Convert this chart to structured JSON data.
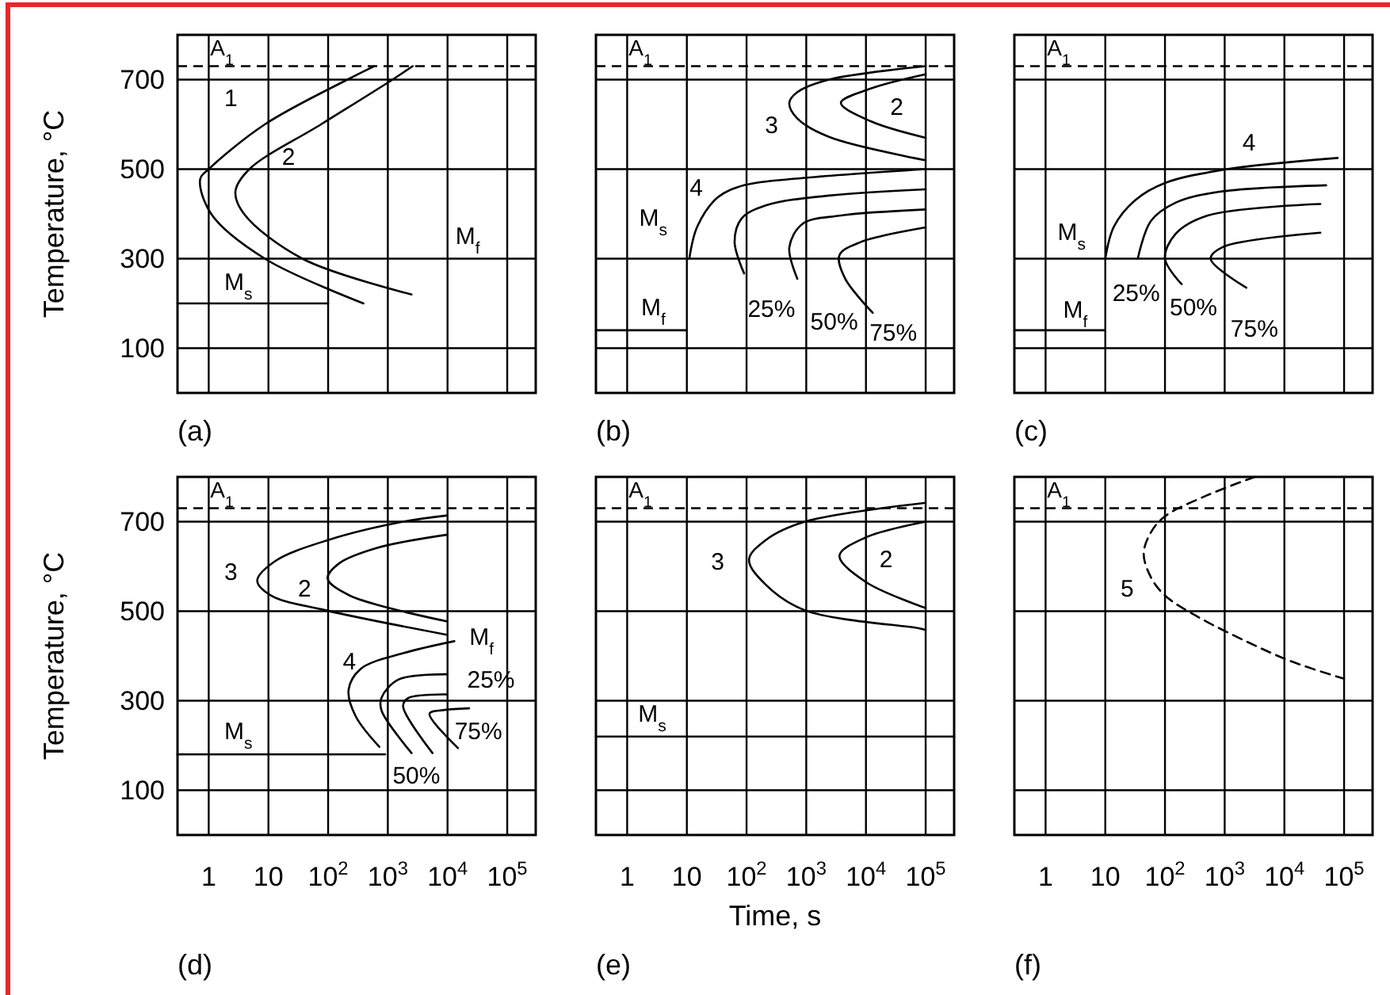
{
  "chart_data": [
    {
      "type": "line",
      "title": "(a)",
      "ylabel": "Temperature, °C",
      "log": "x",
      "xlim": [
        0.3,
        300000
      ],
      "ylim": [
        0,
        800
      ],
      "xticks": [
        1,
        10,
        100,
        1000,
        10000,
        100000
      ],
      "yticks": [
        100,
        300,
        500,
        700
      ],
      "grid": true,
      "tick_labels": "y",
      "line_style": "solid",
      "series": [
        {
          "color": "#000000",
          "x": [
            590,
            210,
            8.7,
            1.0,
            0.72,
            1.1,
            8.7,
            390
          ],
          "values": [
            730,
            700,
            600,
            500,
            478,
            400,
            300,
            200
          ]
        },
        {
          "color": "#000000",
          "x": [
            2600,
            1200,
            76,
            4.8,
            2.8,
            3.9,
            37,
            2500
          ],
          "values": [
            730,
            700,
            600,
            500,
            450,
            400,
            300,
            220
          ]
        },
        {
          "color": "#000000",
          "x": [
            0.3,
            100
          ],
          "values": [
            200,
            200
          ]
        }
      ],
      "ref_lines": [
        {
          "axis": "y",
          "value": 730,
          "label": "A$_{1}$",
          "line_style": "dashed"
        }
      ],
      "annotations": [
        "1",
        "2",
        "M$_{s}$",
        "M$_{f}$"
      ]
    },
    {
      "type": "line",
      "title": "(b)",
      "log": "x",
      "xlim": [
        0.3,
        300000
      ],
      "ylim": [
        0,
        800
      ],
      "xticks": [
        1,
        10,
        100,
        1000,
        10000,
        100000
      ],
      "yticks": [
        100,
        300,
        500,
        700
      ],
      "grid": true,
      "tick_labels": false,
      "line_style": "solid",
      "series": [
        {
          "color": "#000000",
          "x": [
            100000,
            2400,
            710,
            520,
            710,
            2400,
            63000,
            100000
          ],
          "values": [
            730,
            700,
            672,
            648,
            613,
            572,
            525,
            520
          ]
        },
        {
          "color": "#000000",
          "x": [
            100000,
            12000,
            3800,
            12000,
            100000
          ],
          "values": [
            712,
            680,
            648,
            607,
            570
          ]
        },
        {
          "color": "#000000",
          "x": [
            11,
            15,
            33,
            91,
            870,
            100000
          ],
          "values": [
            300,
            372,
            437,
            464,
            480,
            500
          ]
        },
        {
          "color": "#000000",
          "x": [
            91,
            63,
            83,
            210,
            2400,
            100000
          ],
          "values": [
            267,
            337,
            390,
            419,
            441,
            455
          ]
        },
        {
          "color": "#000000",
          "x": [
            710,
            520,
            870,
            3600,
            100000
          ],
          "values": [
            255,
            325,
            378,
            396,
            410
          ]
        },
        {
          "color": "#000000",
          "x": [
            13000,
            4500,
            3600,
            8100,
            100000
          ],
          "values": [
            179,
            255,
            308,
            337,
            370
          ]
        },
        {
          "color": "#000000",
          "x": [
            0.3,
            10
          ],
          "values": [
            140,
            140
          ]
        }
      ],
      "ref_lines": [
        {
          "axis": "y",
          "value": 730,
          "label": "A$_{1}$",
          "line_style": "dashed"
        }
      ],
      "annotations": [
        "4",
        "3",
        "2",
        "25%",
        "50%",
        "75%",
        "M$_{s}$",
        "M$_{f}$"
      ]
    },
    {
      "type": "line",
      "title": "(c)",
      "log": "x",
      "xlim": [
        0.3,
        300000
      ],
      "ylim": [
        0,
        800
      ],
      "xticks": [
        1,
        10,
        100,
        1000,
        10000,
        100000
      ],
      "yticks": [
        100,
        300,
        500,
        700
      ],
      "grid": true,
      "tick_labels": false,
      "line_style": "solid",
      "series": [
        {
          "color": "#000000",
          "x": [
            10,
            14,
            32,
            100,
            1000,
            78000
          ],
          "values": [
            300,
            372,
            431,
            469,
            499,
            525
          ]
        },
        {
          "color": "#000000",
          "x": [
            35,
            58,
            150,
            780,
            50000
          ],
          "values": [
            300,
            384,
            425,
            449,
            464
          ]
        },
        {
          "color": "#000000",
          "x": [
            190,
            100,
            150,
            510,
            40000
          ],
          "values": [
            243,
            300,
            355,
            396,
            422
          ]
        },
        {
          "color": "#000000",
          "x": [
            2300,
            580,
            930,
            40000
          ],
          "values": [
            235,
            300,
            326,
            358
          ]
        },
        {
          "color": "#000000",
          "x": [
            0.3,
            10
          ],
          "values": [
            140,
            140
          ]
        }
      ],
      "ref_lines": [
        {
          "axis": "y",
          "value": 730,
          "label": "A$_{1}$",
          "line_style": "dashed"
        }
      ],
      "annotations": [
        "4",
        "M$_{s}$",
        "M$_{f}$",
        "25%",
        "50%",
        "75%"
      ]
    },
    {
      "type": "line",
      "title": "(d)",
      "ylabel": "Temperature, °C",
      "log": "x",
      "xlim": [
        0.3,
        300000
      ],
      "ylim": [
        0,
        800
      ],
      "xticks": [
        1,
        10,
        {
          "value": 100,
          "label": "10$^{2}$"
        },
        {
          "value": 1000,
          "label": "10$^{3}$"
        },
        {
          "value": 10000,
          "label": "10$^{4}$"
        },
        {
          "value": 100000,
          "label": "10$^{5}$"
        }
      ],
      "yticks": [
        100,
        300,
        500,
        700
      ],
      "grid": true,
      "line_style": "solid",
      "series": [
        {
          "color": "#000000",
          "x": [
            10000,
            1800,
            100,
            13,
            6.5,
            11,
            91,
            10000
          ],
          "values": [
            714,
            700,
            659,
            612,
            568,
            535,
            502,
            447
          ]
        },
        {
          "color": "#000000",
          "x": [
            10000,
            650,
            150,
            98,
            230,
            10000
          ],
          "values": [
            671,
            641,
            606,
            573,
            535,
            477
          ]
        },
        {
          "color": "#000000",
          "x": [
            720,
            290,
            220,
            350,
            1800,
            13000
          ],
          "values": [
            197,
            265,
            324,
            371,
            406,
            433
          ]
        },
        {
          "color": "#000000",
          "x": [
            2500,
            790,
            780,
            1500,
            10000
          ],
          "values": [
            183,
            277,
            306,
            347,
            359
          ]
        },
        {
          "color": "#000000",
          "x": [
            5600,
            1800,
            2200,
            10000
          ],
          "values": [
            183,
            288,
            306,
            314
          ]
        },
        {
          "color": "#000000",
          "x": [
            15000,
            5000,
            8500,
            23000
          ],
          "values": [
            194,
            271,
            279,
            283
          ]
        },
        {
          "color": "#000000",
          "x": [
            0.3,
            900
          ],
          "values": [
            180,
            180
          ]
        }
      ],
      "ref_lines": [
        {
          "axis": "y",
          "value": 730,
          "label": "A$_{1}$",
          "line_style": "dashed"
        }
      ],
      "annotations": [
        "3",
        "2",
        "4",
        "M$_{s}$",
        "50%",
        "M$_{f}$",
        "25%",
        "75%"
      ]
    },
    {
      "type": "line",
      "title": "(e)",
      "xlabel": "Time, s",
      "log": "x",
      "xlim": [
        0.3,
        300000
      ],
      "ylim": [
        0,
        800
      ],
      "xticks": [
        1,
        10,
        {
          "value": 100,
          "label": "10$^{2}$"
        },
        {
          "value": 1000,
          "label": "10$^{3}$"
        },
        {
          "value": 10000,
          "label": "10$^{4}$"
        },
        {
          "value": 100000,
          "label": "10$^{5}$"
        }
      ],
      "yticks": [
        100,
        300,
        500,
        700
      ],
      "grid": true,
      "tick_labels": "x",
      "line_style": "solid",
      "series": [
        {
          "color": "#000000",
          "x": [
            100000,
            950,
            210,
            110,
            210,
            950,
            76000,
            100000
          ],
          "values": [
            742,
            700,
            659,
            615,
            559,
            502,
            462,
            458
          ]
        },
        {
          "color": "#000000",
          "x": [
            100000,
            10000,
            3600,
            10000,
            100000
          ],
          "values": [
            700,
            665,
            624,
            565,
            507
          ]
        },
        {
          "color": "#000000",
          "x": [
            0.3,
            300000
          ],
          "values": [
            220,
            220
          ]
        }
      ],
      "ref_lines": [
        {
          "axis": "y",
          "value": 730,
          "label": "A$_{1}$",
          "line_style": "dashed"
        }
      ],
      "annotations": [
        "3",
        "2",
        "M$_{s}$"
      ]
    },
    {
      "type": "line",
      "title": "(f)",
      "log": "x",
      "xlim": [
        0.3,
        300000
      ],
      "ylim": [
        0,
        800
      ],
      "xticks": [
        1,
        10,
        {
          "value": 100,
          "label": "10$^{2}$"
        },
        {
          "value": 1000,
          "label": "10$^{3}$"
        },
        {
          "value": 10000,
          "label": "10$^{4}$"
        },
        {
          "value": 100000,
          "label": "10$^{5}$"
        }
      ],
      "yticks": [
        100,
        300,
        500,
        700
      ],
      "grid": true,
      "tick_labels": "x",
      "line_style": "dashed",
      "series": [
        {
          "color": "#000000",
          "x": [
            3200,
            510,
            100,
            58,
            44,
            58,
            100,
            350,
            2100,
            13000,
            100000
          ],
          "values": [
            800,
            759,
            712,
            676,
            629,
            576,
            535,
            488,
            435,
            388,
            349
          ]
        }
      ],
      "ref_lines": [
        {
          "axis": "y",
          "value": 730,
          "label": "A$_{1}$",
          "line_style": "dashed"
        }
      ],
      "annotations": [
        "5"
      ]
    }
  ]
}
